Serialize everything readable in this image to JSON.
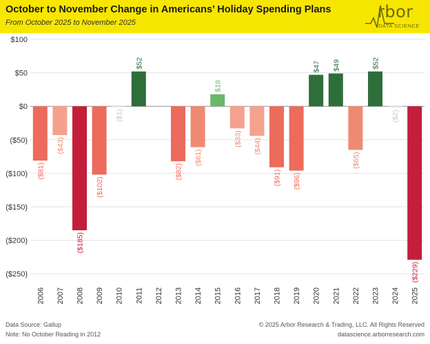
{
  "header": {
    "title": "October to November Change in Americans’ Holiday Spending Plans",
    "subtitle": "From October 2025 to November 2025",
    "logo_word": "rbor",
    "logo_sub": "DATA SCIENCE"
  },
  "footer": {
    "source": "Data Source: Gallup",
    "note": "Note: No October Reading in 2012",
    "copyright": "© 2025 Arbor Research & Trading, LLC. All Rights Reserved",
    "website": "datascience.arborresearch.com"
  },
  "colors": {
    "banner": "#f7e600",
    "dark_green": "#2e6e3a",
    "light_green": "#6ab86a",
    "pale_red": "#f4a28e",
    "mid_red": "#ef8a72",
    "red": "#ec6b5c",
    "dark_red": "#c41e3a"
  },
  "chart_data": {
    "type": "bar",
    "categories": [
      "2006",
      "2007",
      "2008",
      "2009",
      "2010",
      "2011",
      "2012",
      "2013",
      "2014",
      "2015",
      "2016",
      "2017",
      "2018",
      "2019",
      "2020",
      "2021",
      "2022",
      "2023",
      "2024",
      "2025"
    ],
    "values": [
      -81,
      -43,
      -185,
      -102,
      -1,
      52,
      null,
      -82,
      -61,
      18,
      -33,
      -44,
      -91,
      -96,
      47,
      49,
      -65,
      52,
      -2,
      -229
    ],
    "labels": [
      "($81)",
      "($43)",
      "($185)",
      "($102)",
      "($1)",
      "$52",
      "",
      "($82)",
      "($61)",
      "$18",
      "($33)",
      "($44)",
      "($91)",
      "($96)",
      "$47",
      "$49",
      "($65)",
      "$52",
      "($2)",
      "($229)"
    ],
    "yticks": [
      100,
      50,
      0,
      -50,
      -100,
      -150,
      -200,
      -250
    ],
    "ytick_labels": [
      "$100",
      "$50",
      "$0",
      "($50)",
      "($100)",
      "($150)",
      "($200)",
      "($250)"
    ],
    "ylim": [
      -260,
      100
    ],
    "grid": true
  }
}
